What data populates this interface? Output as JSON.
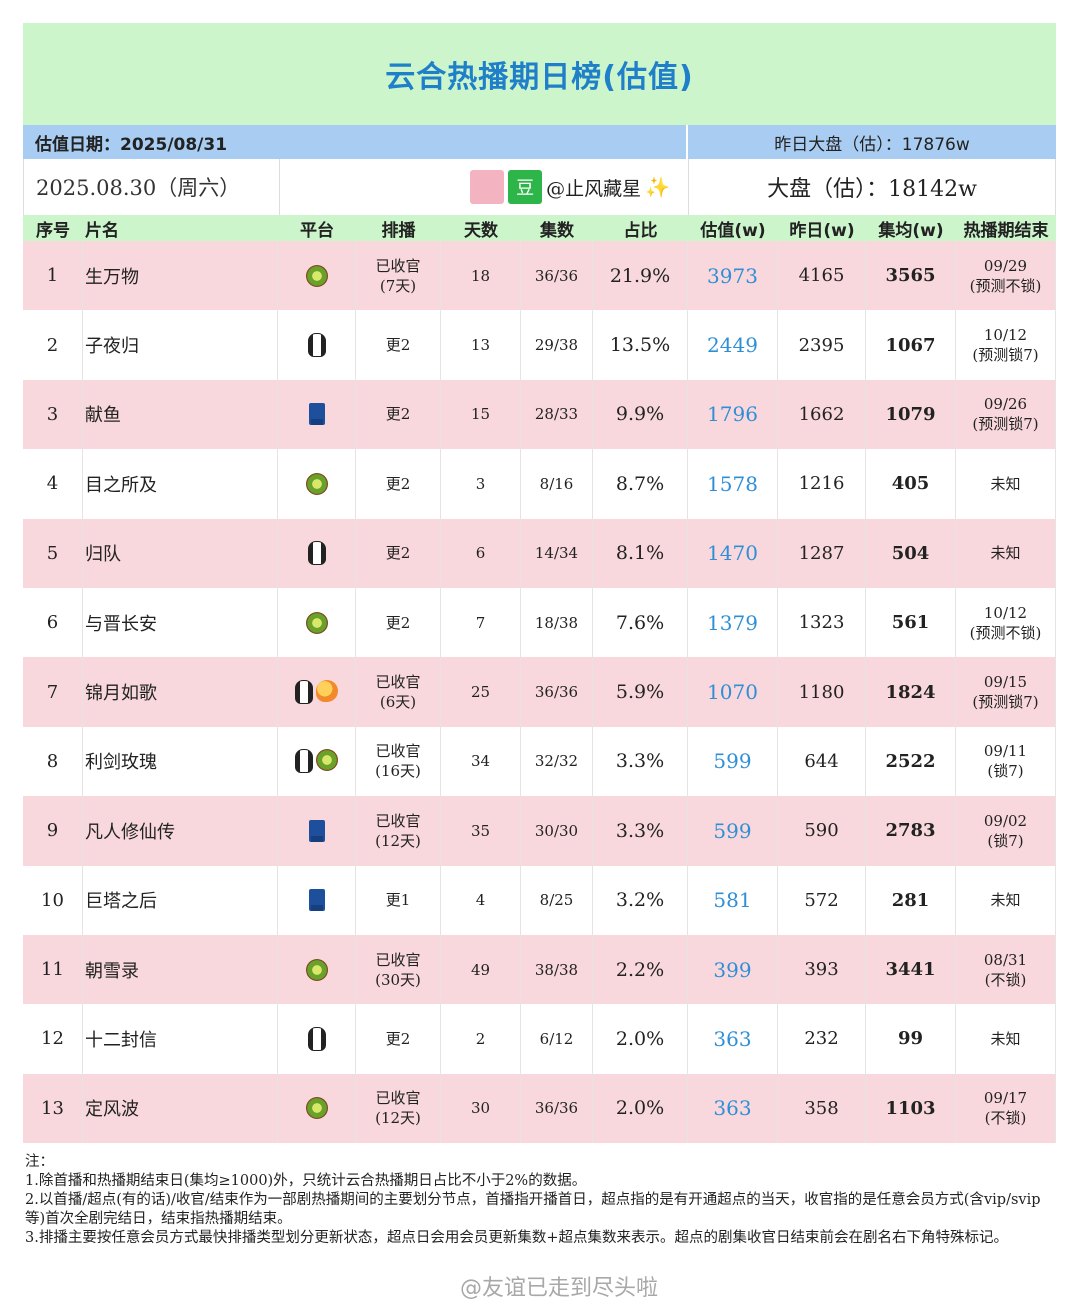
{
  "title": "云合热播期日榜(估值)",
  "estimate_date": "估值日期：2025/08/31",
  "yesterday_total": "昨日大盘（估）：17876w",
  "date_line": "2025.08.30（周六）",
  "author_dou": "豆",
  "author": "@止风藏星",
  "sparkle": "✨",
  "total": "大盘（估）：18142w",
  "headers": [
    "序号",
    "片名",
    "平台",
    "排播",
    "天数",
    "集数",
    "占比",
    "估值(w)",
    "昨日(w)",
    "集均(w)",
    "热播期结束"
  ],
  "rows": [
    {
      "no": "1",
      "name": "生万物",
      "platforms": [
        "kiwi-icon"
      ],
      "sched": "已收官",
      "sched2": "(7天)",
      "days": "18",
      "eps": "36/36",
      "share": "21.9%",
      "est": "3973",
      "yest": "4165",
      "avg": "3565",
      "end": "09/29",
      "end2": "(预测不锁)"
    },
    {
      "no": "2",
      "name": "子夜归",
      "platforms": [
        "penguin-icon"
      ],
      "sched": "更2",
      "sched2": "",
      "days": "13",
      "eps": "29/38",
      "share": "13.5%",
      "est": "2449",
      "yest": "2395",
      "avg": "1067",
      "end": "10/12",
      "end2": "(预测锁7)"
    },
    {
      "no": "3",
      "name": "献鱼",
      "platforms": [
        "jeans-icon"
      ],
      "sched": "更2",
      "sched2": "",
      "days": "15",
      "eps": "28/33",
      "share": "9.9%",
      "est": "1796",
      "yest": "1662",
      "avg": "1079",
      "end": "09/26",
      "end2": "(预测锁7)"
    },
    {
      "no": "4",
      "name": "目之所及",
      "platforms": [
        "kiwi-icon"
      ],
      "sched": "更2",
      "sched2": "",
      "days": "3",
      "eps": "8/16",
      "share": "8.7%",
      "est": "1578",
      "yest": "1216",
      "avg": "405",
      "end": "未知",
      "end2": ""
    },
    {
      "no": "5",
      "name": "归队",
      "platforms": [
        "penguin-icon"
      ],
      "sched": "更2",
      "sched2": "",
      "days": "6",
      "eps": "14/34",
      "share": "8.1%",
      "est": "1470",
      "yest": "1287",
      "avg": "504",
      "end": "未知",
      "end2": ""
    },
    {
      "no": "6",
      "name": "与晋长安",
      "platforms": [
        "kiwi-icon"
      ],
      "sched": "更2",
      "sched2": "",
      "days": "7",
      "eps": "18/38",
      "share": "7.6%",
      "est": "1379",
      "yest": "1323",
      "avg": "561",
      "end": "10/12",
      "end2": "(预测不锁)"
    },
    {
      "no": "7",
      "name": "锦月如歌",
      "platforms": [
        "penguin-icon",
        "mango-icon"
      ],
      "sched": "已收官",
      "sched2": "(6天)",
      "days": "25",
      "eps": "36/36",
      "share": "5.9%",
      "est": "1070",
      "yest": "1180",
      "avg": "1824",
      "end": "09/15",
      "end2": "(预测锁7)"
    },
    {
      "no": "8",
      "name": "利剑玫瑰",
      "platforms": [
        "penguin-icon",
        "kiwi-icon"
      ],
      "sched": "已收官",
      "sched2": "(16天)",
      "days": "34",
      "eps": "32/32",
      "share": "3.3%",
      "est": "599",
      "yest": "644",
      "avg": "2522",
      "end": "09/11",
      "end2": "(锁7)"
    },
    {
      "no": "9",
      "name": "凡人修仙传",
      "platforms": [
        "jeans-icon"
      ],
      "sched": "已收官",
      "sched2": "(12天)",
      "days": "35",
      "eps": "30/30",
      "share": "3.3%",
      "est": "599",
      "yest": "590",
      "avg": "2783",
      "end": "09/02",
      "end2": "(锁7)"
    },
    {
      "no": "10",
      "name": "巨塔之后",
      "platforms": [
        "jeans-icon"
      ],
      "sched": "更1",
      "sched2": "",
      "days": "4",
      "eps": "8/25",
      "share": "3.2%",
      "est": "581",
      "yest": "572",
      "avg": "281",
      "end": "未知",
      "end2": ""
    },
    {
      "no": "11",
      "name": "朝雪录",
      "platforms": [
        "kiwi-icon"
      ],
      "sched": "已收官",
      "sched2": "(30天)",
      "days": "49",
      "eps": "38/38",
      "share": "2.2%",
      "est": "399",
      "yest": "393",
      "avg": "3441",
      "end": "08/31",
      "end2": "(不锁)"
    },
    {
      "no": "12",
      "name": "十二封信",
      "platforms": [
        "penguin-icon"
      ],
      "sched": "更2",
      "sched2": "",
      "days": "2",
      "eps": "6/12",
      "share": "2.0%",
      "est": "363",
      "yest": "232",
      "avg": "99",
      "end": "未知",
      "end2": ""
    },
    {
      "no": "13",
      "name": "定风波",
      "platforms": [
        "kiwi-icon"
      ],
      "sched": "已收官",
      "sched2": "(12天)",
      "days": "30",
      "eps": "36/36",
      "share": "2.0%",
      "est": "363",
      "yest": "358",
      "avg": "1103",
      "end": "09/17",
      "end2": "(不锁)"
    }
  ],
  "notes": [
    "注：",
    "1.除首播和热播期结束日(集均≥1000)外，只统计云合热播期日占比不小于2%的数据。",
    "2.以首播/超点(有的话)/收官/结束作为一部剧热播期间的主要划分节点，首播指开播首日，超点指的是有开通超点的当天，收官指的是任意会员方式(含vip/svip等)首次全剧完结日，结束指热播期结束。",
    "3.排播主要按任意会员方式最快排播类型划分更新状态，超点日会用会员更新集数+超点集数来表示。超点的剧集收官日结束前会在剧名右下角特殊标记。"
  ],
  "watermark": "@友谊已走到尽头啦"
}
